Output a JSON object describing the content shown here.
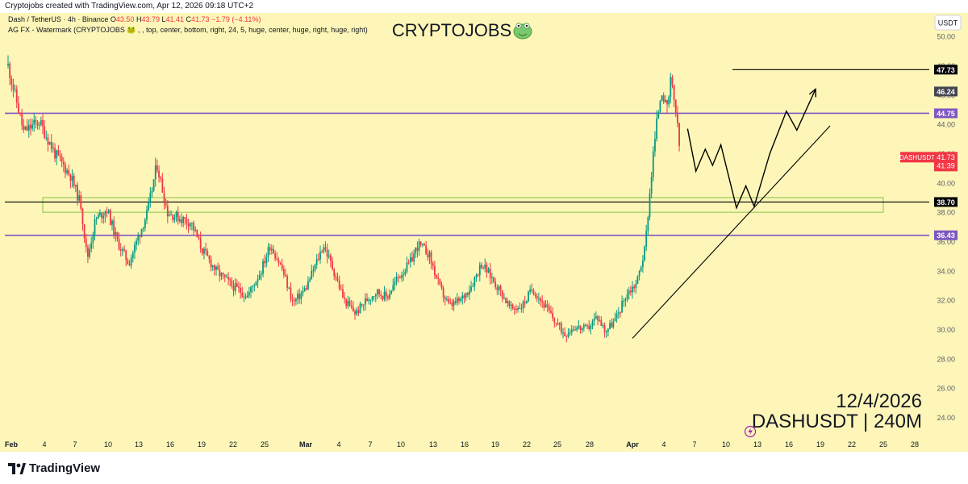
{
  "header": {
    "created_by": "Cryptojobs created with TradingView.com, Apr 12, 2026 09:18 UTC+2",
    "legend_line1": {
      "symbol_text": "Dash / TetherUS · 4h · Binance",
      "o_label": "O",
      "o_value": "43.50",
      "h_label": "H",
      "h_value": "43.79",
      "l_label": "L",
      "l_value": "41.41",
      "c_label": "C",
      "c_value": "41.73",
      "change": "−1.79 (−4.11%)"
    },
    "legend_line2": "AG FX - Watermark (CRYPTOJOBS 🐸 , , top, center, bottom, right, 24, 5, huge, center, huge, right, huge, right)"
  },
  "watermark": {
    "brand": "CRYPTOJOBS",
    "emoji": "🐸",
    "date": "12/4/2026",
    "pair_tf": "DASHUSDT | 240M"
  },
  "currency_badge": "USDT",
  "footer": {
    "logo_text": "TradingView"
  },
  "colors": {
    "background": "#fdf6b8",
    "up": "#089981",
    "down": "#f23645",
    "support_resistance": "#7e57c2",
    "level": "#000000",
    "zone": "#8bc34a",
    "price_tag": "#f23645"
  },
  "chart_data": {
    "type": "candlestick",
    "title": "Dash / TetherUS · 4h · Binance",
    "ylim": [
      22.6,
      51.6
    ],
    "y_ticks": [
      "24.00",
      "26.00",
      "28.00",
      "30.00",
      "32.00",
      "34.00",
      "36.00",
      "38.00",
      "40.00",
      "42.00",
      "44.00",
      "46.00",
      "48.00",
      "50.00"
    ],
    "x_ticks": [
      {
        "label": "Feb",
        "bold": true
      },
      {
        "label": "4"
      },
      {
        "label": "7"
      },
      {
        "label": "10"
      },
      {
        "label": "13"
      },
      {
        "label": "16"
      },
      {
        "label": "19"
      },
      {
        "label": "22"
      },
      {
        "label": "25"
      },
      {
        "label": "Mar",
        "bold": true
      },
      {
        "label": "4"
      },
      {
        "label": "7"
      },
      {
        "label": "10"
      },
      {
        "label": "13"
      },
      {
        "label": "16"
      },
      {
        "label": "19"
      },
      {
        "label": "22"
      },
      {
        "label": "25"
      },
      {
        "label": "28"
      },
      {
        "label": "Apr",
        "bold": true
      },
      {
        "label": "4"
      },
      {
        "label": "7"
      },
      {
        "label": "10"
      },
      {
        "label": "13"
      },
      {
        "label": "16"
      },
      {
        "label": "19"
      },
      {
        "label": "22"
      },
      {
        "label": "25"
      },
      {
        "label": "28"
      }
    ],
    "price_path": [
      [
        0,
        48.0
      ],
      [
        1.5,
        43.5
      ],
      [
        3,
        44.2
      ],
      [
        4.5,
        42.0
      ],
      [
        6,
        40.5
      ],
      [
        7,
        38.5
      ],
      [
        7.6,
        34.8
      ],
      [
        8.4,
        37.5
      ],
      [
        9.5,
        38.2
      ],
      [
        10.5,
        36.0
      ],
      [
        11.6,
        34.5
      ],
      [
        12.6,
        36.5
      ],
      [
        13.4,
        38.0
      ],
      [
        14.3,
        41.3
      ],
      [
        15.3,
        38.0
      ],
      [
        16.5,
        37.6
      ],
      [
        17.6,
        37.3
      ],
      [
        18.6,
        35.5
      ],
      [
        20,
        34.0
      ],
      [
        21.5,
        33.0
      ],
      [
        23,
        32.3
      ],
      [
        24.3,
        34.0
      ],
      [
        25.2,
        35.8
      ],
      [
        26.3,
        34.2
      ],
      [
        27.4,
        31.8
      ],
      [
        28.6,
        32.8
      ],
      [
        29.6,
        34.5
      ],
      [
        30.3,
        35.8
      ],
      [
        31.3,
        34.0
      ],
      [
        32.3,
        32.0
      ],
      [
        33.4,
        31.1
      ],
      [
        34.4,
        32.0
      ],
      [
        35.4,
        32.6
      ],
      [
        36.4,
        32.2
      ],
      [
        37.4,
        33.5
      ],
      [
        38.6,
        34.5
      ],
      [
        39.4,
        35.8
      ],
      [
        40.4,
        35.2
      ],
      [
        41.5,
        32.8
      ],
      [
        42.4,
        31.6
      ],
      [
        43.5,
        32.0
      ],
      [
        44.5,
        33.0
      ],
      [
        45.5,
        34.5
      ],
      [
        46.5,
        33.5
      ],
      [
        47.4,
        32.5
      ],
      [
        48.3,
        31.4
      ],
      [
        49.4,
        31.6
      ],
      [
        50.4,
        32.8
      ],
      [
        51.4,
        31.8
      ],
      [
        52.6,
        30.5
      ],
      [
        53.5,
        29.7
      ],
      [
        54.4,
        30.2
      ],
      [
        55.6,
        30.0
      ],
      [
        56.6,
        30.9
      ],
      [
        57.4,
        29.9
      ],
      [
        58.4,
        30.7
      ],
      [
        59.4,
        32.4
      ],
      [
        60.4,
        33.2
      ],
      [
        61.2,
        35.5
      ],
      [
        61.6,
        38.8
      ],
      [
        62.0,
        42.0
      ],
      [
        62.4,
        44.5
      ],
      [
        62.8,
        46.5
      ],
      [
        63.3,
        44.8
      ],
      [
        63.7,
        47.0
      ],
      [
        64.1,
        45.2
      ],
      [
        64.4,
        43.3
      ],
      [
        64.6,
        41.7
      ]
    ],
    "levels": [
      {
        "value": 47.73,
        "label": "47.73",
        "style": "black"
      },
      {
        "value": 44.75,
        "label": "44.75",
        "style": "purple"
      },
      {
        "value": 38.7,
        "label": "38.70",
        "style": "black"
      },
      {
        "value": 36.43,
        "label": "36.43",
        "style": "purple"
      }
    ],
    "zone": {
      "from": 38.0,
      "to": 39.0
    },
    "last_price": {
      "name": "DASHUSDT",
      "value": "41.73",
      "countdown": "41:39"
    },
    "badge_46": "46.24",
    "projection": [
      [
        65.3,
        43.7
      ],
      [
        66.1,
        40.8
      ],
      [
        67.0,
        42.3
      ],
      [
        67.7,
        41.2
      ],
      [
        68.5,
        42.6
      ],
      [
        70.0,
        38.3
      ],
      [
        70.9,
        39.8
      ],
      [
        71.7,
        38.4
      ],
      [
        73.2,
        42.0
      ],
      [
        74.8,
        44.9
      ],
      [
        75.8,
        43.6
      ],
      [
        77.6,
        46.4
      ]
    ],
    "trendline": [
      [
        60.0,
        29.4
      ],
      [
        79.0,
        43.9
      ]
    ]
  }
}
